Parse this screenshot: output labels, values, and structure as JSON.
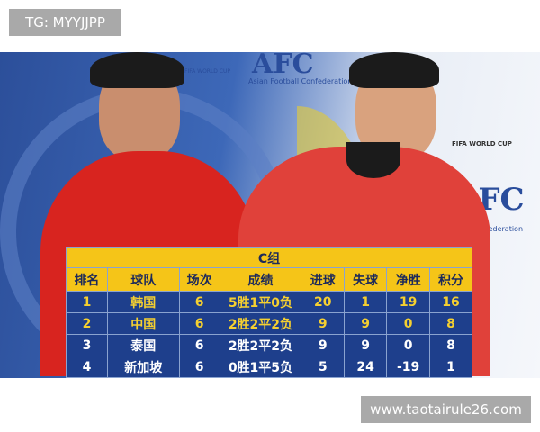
{
  "watermarks": {
    "top_left": "TG: MYYJJPP",
    "bottom_right": "www.taotairule26.com"
  },
  "logos": {
    "afc_text": "AFC",
    "afc_caption": "Asian Football Confederation",
    "wc_text": "FIFA WORLD CUP",
    "afc2_caption": "Football Confederation"
  },
  "table": {
    "title": "C组",
    "headers": [
      "排名",
      "球队",
      "场次",
      "成绩",
      "进球",
      "失球",
      "净胜",
      "积分"
    ],
    "rows": [
      [
        "1",
        "韩国",
        "6",
        "5胜1平0负",
        "20",
        "1",
        "19",
        "16"
      ],
      [
        "2",
        "中国",
        "6",
        "2胜2平2负",
        "9",
        "9",
        "0",
        "8"
      ],
      [
        "3",
        "泰国",
        "6",
        "2胜2平2负",
        "9",
        "9",
        "0",
        "8"
      ],
      [
        "4",
        "新加坡",
        "6",
        "0胜1平5负",
        "5",
        "24",
        "-19",
        "1"
      ]
    ]
  }
}
